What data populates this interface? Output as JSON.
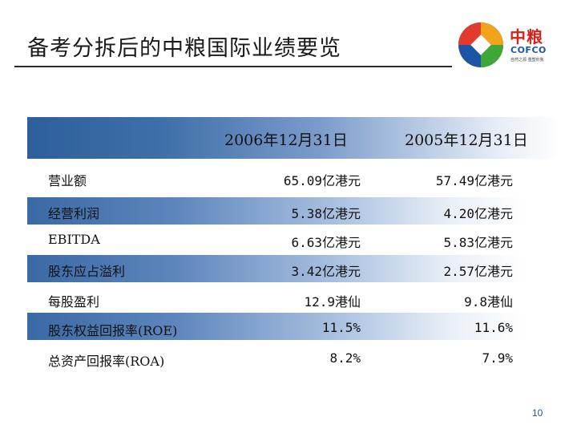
{
  "slide": {
    "title": "备考分拆后的中粮国际业绩要览",
    "page_number": "10"
  },
  "logo": {
    "name": "中粮",
    "sub": "COFCO",
    "tagline": "自然之源 重塑你我"
  },
  "table": {
    "columns": [
      "2006年12月31日",
      "2005年12月31日"
    ],
    "rows": [
      {
        "label": "营业额",
        "v2006": "65.09亿港元",
        "v2005": "57.49亿港元"
      },
      {
        "label": "经营利润",
        "v2006": "5.38亿港元",
        "v2005": "4.20亿港元"
      },
      {
        "label": "EBITDA",
        "v2006": "6.63亿港元",
        "v2005": "5.83亿港元"
      },
      {
        "label": "股东应占溢利",
        "v2006": "3.42亿港元",
        "v2005": "2.57亿港元"
      },
      {
        "label": "每股盈利",
        "v2006": "12.9港仙",
        "v2005": "9.8港仙"
      },
      {
        "label": "股东权益回报率(ROE)",
        "v2006": "11.5%",
        "v2005": "11.6%"
      },
      {
        "label": "总资产回报率(ROA)",
        "v2006": "8.2%",
        "v2005": "7.9%"
      }
    ]
  },
  "colors": {
    "band_dark": "#2d5f9a",
    "logo_red": "#d7221a",
    "logo_blue": "#1d55a6"
  }
}
